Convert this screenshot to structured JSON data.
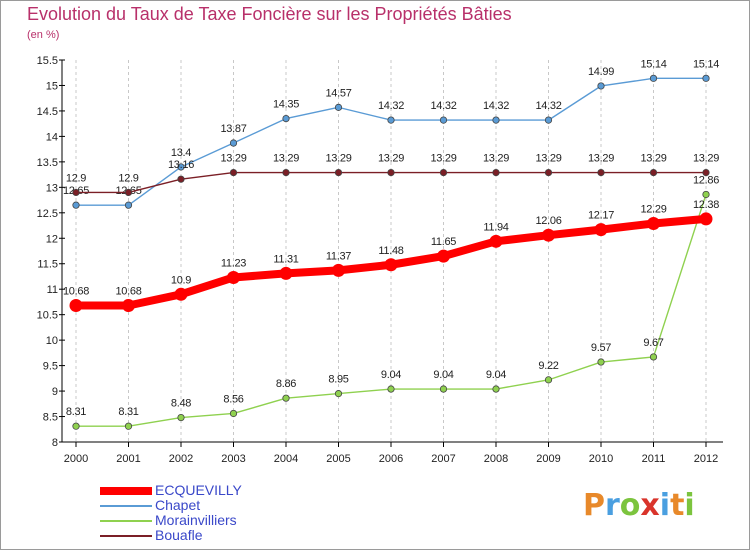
{
  "header": {
    "title": "Evolution du Taux de Taxe Foncière sur les Propriétés Bâties",
    "unit_label": "(en %)"
  },
  "logo": {
    "text": "Proxiti",
    "letters": [
      "P",
      "r",
      "o",
      "x",
      "i",
      "t",
      "i"
    ],
    "colors": [
      "#e8892a",
      "#4a9fe0",
      "#7cc43e",
      "#d9342b",
      "#4a9fe0",
      "#e8892a",
      "#7cc43e"
    ]
  },
  "chart_data": {
    "type": "line",
    "categories": [
      "2000",
      "2001",
      "2002",
      "2003",
      "2004",
      "2005",
      "2006",
      "2007",
      "2008",
      "2009",
      "2010",
      "2011",
      "2012"
    ],
    "ylim": [
      8,
      15.5
    ],
    "y_ticks": [
      "8",
      "8.5",
      "9",
      "9.5",
      "10",
      "10.5",
      "11",
      "11.5",
      "12",
      "12.5",
      "13",
      "13.5",
      "14",
      "14.5",
      "15",
      "15.5"
    ],
    "grid": "vertical dashed",
    "legend_position": "bottom-left",
    "series": [
      {
        "name": "Chapet",
        "color": "#5a9bd5",
        "values": [
          12.65,
          12.65,
          13.4,
          13.87,
          14.35,
          14.57,
          14.32,
          14.32,
          14.32,
          14.32,
          14.99,
          15.14,
          15.14
        ],
        "labels": [
          "12.65",
          "12.65",
          "13.4",
          "13.87",
          "14.35",
          "14.57",
          "14.32",
          "14.32",
          "14.32",
          "14.32",
          "14.99",
          "15.14",
          "15.14"
        ]
      },
      {
        "name": "Bouafle",
        "color": "#7b1f26",
        "values": [
          12.9,
          12.9,
          13.16,
          13.29,
          13.29,
          13.29,
          13.29,
          13.29,
          13.29,
          13.29,
          13.29,
          13.29,
          13.29
        ],
        "labels": [
          "12.9",
          "12.9",
          "13.16",
          "13.29",
          "13.29",
          "13.29",
          "13.29",
          "13.29",
          "13.29",
          "13.29",
          "13.29",
          "13.29",
          "13.29"
        ]
      },
      {
        "name": "Morainvilliers",
        "color": "#8fd14f",
        "values": [
          8.31,
          8.31,
          8.48,
          8.56,
          8.86,
          8.95,
          9.04,
          9.04,
          9.04,
          9.22,
          9.57,
          9.67,
          12.86
        ],
        "labels": [
          "8.31",
          "8.31",
          "8.48",
          "8.56",
          "8.86",
          "8.95",
          "9.04",
          "9.04",
          "9.04",
          "9.22",
          "9.57",
          "9.67",
          "12.86"
        ]
      },
      {
        "name": "ECQUEVILLY",
        "color": "#ff0000",
        "values": [
          10.68,
          10.68,
          10.9,
          11.23,
          11.31,
          11.37,
          11.48,
          11.65,
          11.94,
          12.06,
          12.17,
          12.29,
          12.38
        ],
        "labels": [
          "10.68",
          "10.68",
          "10.9",
          "11.23",
          "11.31",
          "11.37",
          "11.48",
          "11.65",
          "11.94",
          "12.06",
          "12.17",
          "12.29",
          "12.38"
        ]
      }
    ],
    "legend": [
      {
        "name": "ECQUEVILLY",
        "color": "#ff0000",
        "style": "thick"
      },
      {
        "name": "Chapet",
        "color": "#5a9bd5",
        "style": "thin"
      },
      {
        "name": "Morainvilliers",
        "color": "#8fd14f",
        "style": "thin"
      },
      {
        "name": "Bouafle",
        "color": "#7b1f26",
        "style": "thin"
      }
    ]
  }
}
